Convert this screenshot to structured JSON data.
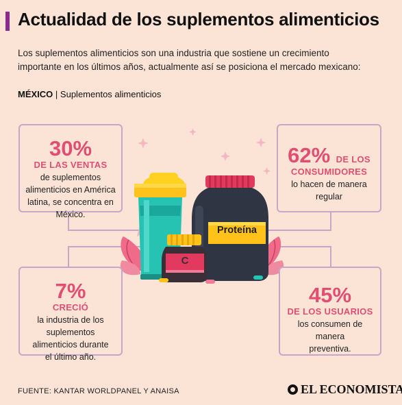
{
  "header": {
    "title": "Actualidad de los suplementos alimenticios",
    "intro": "Los suplementos alimenticios son una industria que sostiene un crecimiento importante en los últimos años, actualmente así se posiciona el mercado mexicano:",
    "subtitle_country": "MÉXICO",
    "subtitle_topic": "Suplementos alimenticios"
  },
  "stats": {
    "a": {
      "value": "30%",
      "highlight": "DE LAS VENTAS",
      "text": "de suplementos alimenticios en América latina, se concentra en México."
    },
    "b": {
      "value": "62%",
      "highlight_inline": "DE LOS",
      "highlight": "CONSUMIDORES",
      "text": "lo hacen de manera regular"
    },
    "c": {
      "value": "7%",
      "highlight": "CRECIÓ",
      "text": "la industria de los suplementos alimenticios durante el último año."
    },
    "d": {
      "value": "45%",
      "highlight": "DE LOS USUARIOS",
      "text": "los consumen de manera preventiva."
    }
  },
  "illustration": {
    "protein_label": "Proteína",
    "vitamin_label": "C",
    "icons": [
      "shaker-bottle-icon",
      "protein-jar-icon",
      "vitamin-c-jar-icon",
      "leaf-icon",
      "pill-icon",
      "sparkle-icon"
    ]
  },
  "footer": {
    "source": "FUENTE: KANTAR WORLDPANEL Y ANAISA",
    "brand": "EL ECONOMISTA"
  },
  "colors": {
    "background": "#fbe3d6",
    "accent": "#8a2a8c",
    "highlight": "#e24d72",
    "card_border": "#c7a6c9"
  }
}
